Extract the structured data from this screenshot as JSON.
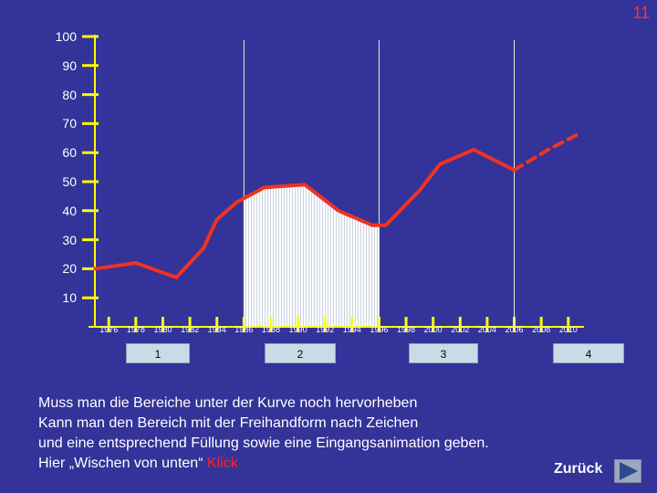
{
  "page_number": "11",
  "colors": {
    "background": "#333399",
    "axis": "#ffff00",
    "line": "#ee3322",
    "fill": "#ffffff",
    "accent": "#ff2222"
  },
  "chart_data": {
    "type": "line",
    "title": "",
    "xlabel": "",
    "ylabel": "",
    "ylim": [
      0,
      100
    ],
    "yticks": [
      10,
      20,
      30,
      40,
      50,
      60,
      70,
      80,
      90,
      100
    ],
    "xticks": [
      "1976",
      "1978",
      "1980",
      "1982",
      "1984",
      "1986",
      "1988",
      "1990",
      "1992",
      "1994",
      "1996",
      "1998",
      "2000",
      "2002",
      "2004",
      "2006",
      "2008",
      "2010"
    ],
    "series": [
      {
        "style": "solid",
        "x": [
          1975,
          1978,
          1981,
          1983,
          1984,
          1985.5,
          1987.5,
          1989,
          1990.5,
          1993,
          1995.5,
          1996.5,
          1999,
          2000.5,
          2003,
          2006
        ],
        "y": [
          20,
          22,
          17,
          27,
          37,
          43,
          48,
          48.5,
          49,
          40,
          35,
          35,
          47,
          56,
          61,
          54
        ]
      },
      {
        "style": "dashed",
        "x": [
          2006,
          2008.5,
          2011
        ],
        "y": [
          54,
          61,
          67
        ]
      }
    ],
    "highlight_range": [
      1986,
      1996
    ],
    "segment_markers": [
      1986,
      1996,
      2006
    ],
    "segments": [
      "1",
      "2",
      "3",
      "4"
    ]
  },
  "text_lines": [
    "Muss man die Bereiche unter der Kurve noch hervorheben",
    "Kann man den Bereich mit der Freihandform nach Zeichen",
    "und eine entsprechend Füllung sowie eine Eingangsanimation geben.",
    "Hier „Wischen von unten“ "
  ],
  "klick_label": "Klick",
  "back_label": "Zurück",
  "back_icon": "play-triangle-icon"
}
